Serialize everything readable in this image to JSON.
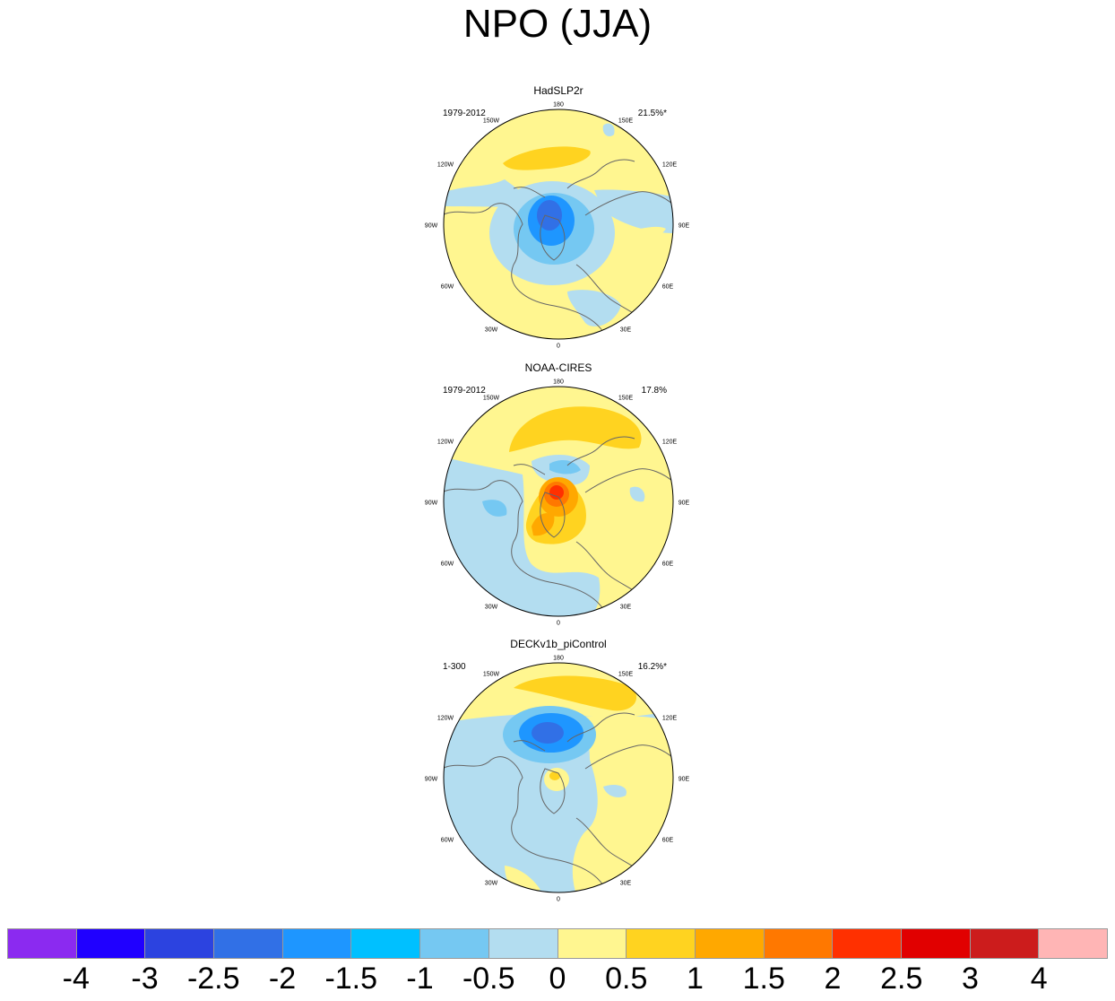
{
  "title": "NPO (JJA)",
  "lon_labels": {
    "l180": "180",
    "l150w": "150W",
    "l150e": "150E",
    "l120w": "120W",
    "l120e": "120E",
    "l90w": "90W",
    "l90e": "90E",
    "l60w": "60W",
    "l60e": "60E",
    "l30w": "30W",
    "l30e": "30E",
    "l0": "0"
  },
  "panels": [
    {
      "name": "HadSLP2r",
      "period": "1979-2012",
      "variance": "21.5%*"
    },
    {
      "name": "NOAA-CIRES",
      "period": "1979-2012",
      "variance": "17.8%"
    },
    {
      "name": "DECKv1b_piControl",
      "period": "1-300",
      "variance": "16.2%*"
    }
  ],
  "colorbar": {
    "colors": [
      "#8b2af0",
      "#2000ff",
      "#2c43e0",
      "#3170e6",
      "#1e96ff",
      "#00c0ff",
      "#75c8f2",
      "#b3ddf0",
      "#fff690",
      "#ffd320",
      "#ffa800",
      "#ff7800",
      "#ff3000",
      "#e10000",
      "#cc1c1c",
      "#ffb5b5"
    ],
    "labels": [
      "-4",
      "-3",
      "-2.5",
      "-2",
      "-1.5",
      "-1",
      "-0.5",
      "0",
      "0.5",
      "1",
      "1.5",
      "2",
      "2.5",
      "3",
      "4"
    ]
  },
  "palette": {
    "light_blue": "#b3ddf0",
    "mid_blue": "#75c8f2",
    "blue": "#1e96ff",
    "dark_blue": "#3170e6",
    "light_yellow": "#fff690",
    "yellow": "#ffd320",
    "orange": "#ffa800",
    "dark_orange": "#ff7800",
    "red": "#ff3000",
    "coast": "#666666"
  }
}
